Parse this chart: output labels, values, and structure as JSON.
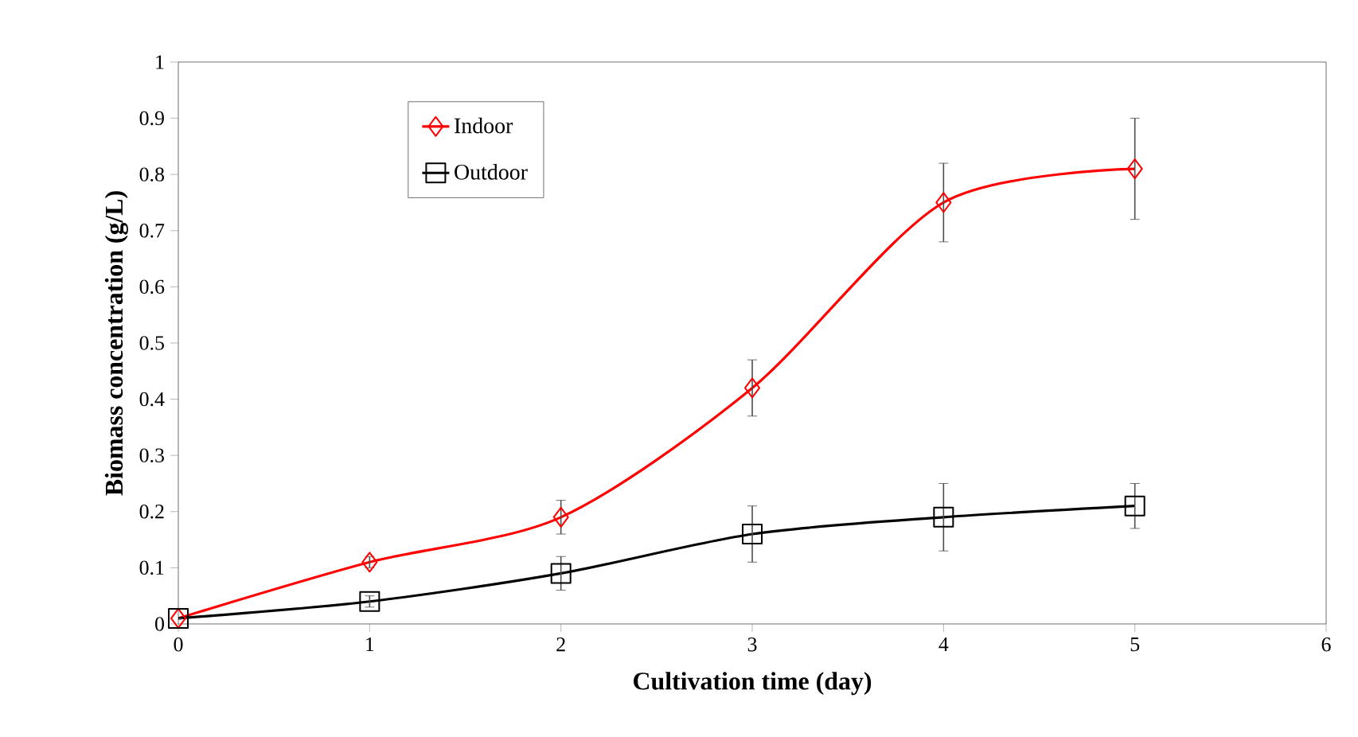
{
  "chart_data": {
    "type": "line",
    "xlabel": "Cultivation time (day)",
    "ylabel": "Biomass concentration (g/L)",
    "x": [
      0,
      1,
      2,
      3,
      4,
      5
    ],
    "series": [
      {
        "name": "Indoor",
        "color": "#ff0000",
        "marker": "diamond",
        "values": [
          0.01,
          0.11,
          0.19,
          0.42,
          0.75,
          0.81
        ],
        "errors": [
          0,
          0.01,
          0.03,
          0.05,
          0.07,
          0.09
        ]
      },
      {
        "name": "Outdoor",
        "color": "#000000",
        "marker": "square",
        "values": [
          0.01,
          0.04,
          0.09,
          0.16,
          0.19,
          0.21
        ],
        "errors": [
          0,
          0.01,
          0.03,
          0.05,
          0.06,
          0.04
        ]
      }
    ],
    "xlim": [
      0,
      6
    ],
    "xticks": [
      0,
      1,
      2,
      3,
      4,
      5,
      6
    ],
    "ylim": [
      0,
      1
    ],
    "yticks": [
      0,
      0.1,
      0.2,
      0.3,
      0.4,
      0.5,
      0.6,
      0.7,
      0.8,
      0.9,
      1
    ],
    "grid": false,
    "legend": "top left",
    "line_style": "solid"
  }
}
